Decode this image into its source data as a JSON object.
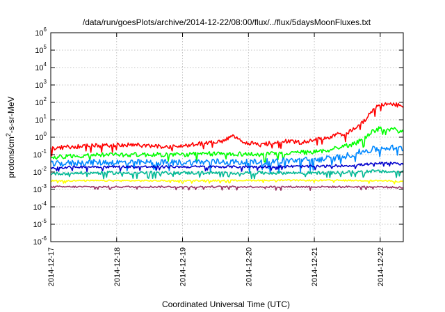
{
  "chart_data": {
    "type": "line",
    "title": "/data/run/goesPlots/archive/2014-12-22/08:00/flux/../flux/5daysMoonFluxes.txt",
    "xlabel": "Coordinated Universal Time (UTC)",
    "ylabel_base": "protons/cm",
    "ylabel_sup": "2",
    "ylabel_rest": "-s-sr-MeV",
    "x_ticks": [
      "2014-12-17",
      "2014-12-18",
      "2014-12-19",
      "2014-12-20",
      "2014-12-21",
      "2014-12-22"
    ],
    "xlim_days": [
      0,
      5.35
    ],
    "y_scale": "log",
    "ylim": [
      1e-06,
      1000000.0
    ],
    "y_ticks": [
      {
        "base": "10",
        "exp": "-6"
      },
      {
        "base": "10",
        "exp": "-5"
      },
      {
        "base": "10",
        "exp": "-4"
      },
      {
        "base": "10",
        "exp": "-3"
      },
      {
        "base": "10",
        "exp": "-2"
      },
      {
        "base": "10",
        "exp": "-1"
      },
      {
        "base": "10",
        "exp": "0"
      },
      {
        "base": "10",
        "exp": "1"
      },
      {
        "base": "10",
        "exp": "2"
      },
      {
        "base": "10",
        "exp": "3"
      },
      {
        "base": "10",
        "exp": "4"
      },
      {
        "base": "10",
        "exp": "5"
      },
      {
        "base": "10",
        "exp": "6"
      }
    ],
    "grid": true,
    "series": [
      {
        "color": "#ff0000",
        "noise": 0.12,
        "points": [
          [
            0,
            -0.65
          ],
          [
            0.3,
            -0.55
          ],
          [
            0.6,
            -0.5
          ],
          [
            1.0,
            -0.45
          ],
          [
            1.3,
            -0.45
          ],
          [
            1.7,
            -0.55
          ],
          [
            2.0,
            -0.5
          ],
          [
            2.3,
            -0.35
          ],
          [
            2.6,
            -0.25
          ],
          [
            2.75,
            0.05
          ],
          [
            2.9,
            -0.25
          ],
          [
            3.2,
            -0.45
          ],
          [
            3.5,
            -0.2
          ],
          [
            3.8,
            -0.3
          ],
          [
            4.0,
            -0.15
          ],
          [
            4.2,
            -0.05
          ],
          [
            4.35,
            0.2
          ],
          [
            4.45,
            0.1
          ],
          [
            4.6,
            0.5
          ],
          [
            4.75,
            0.9
          ],
          [
            4.85,
            1.4
          ],
          [
            4.95,
            1.75
          ],
          [
            5.1,
            1.9
          ],
          [
            5.25,
            1.85
          ],
          [
            5.35,
            1.8
          ]
        ]
      },
      {
        "color": "#00ff00",
        "noise": 0.13,
        "points": [
          [
            0,
            -1.15
          ],
          [
            0.5,
            -1.05
          ],
          [
            1.0,
            -1.0
          ],
          [
            1.5,
            -1.0
          ],
          [
            2.0,
            -1.0
          ],
          [
            2.5,
            -0.95
          ],
          [
            2.8,
            -0.95
          ],
          [
            3.2,
            -1.0
          ],
          [
            3.6,
            -0.9
          ],
          [
            4.0,
            -0.85
          ],
          [
            4.2,
            -0.75
          ],
          [
            4.4,
            -0.55
          ],
          [
            4.6,
            -0.4
          ],
          [
            4.75,
            -0.05
          ],
          [
            4.9,
            0.35
          ],
          [
            5.0,
            0.5
          ],
          [
            5.2,
            0.45
          ],
          [
            5.35,
            0.3
          ]
        ]
      },
      {
        "color": "#0088ff",
        "noise": 0.18,
        "points": [
          [
            0,
            -1.55
          ],
          [
            0.5,
            -1.45
          ],
          [
            1.0,
            -1.45
          ],
          [
            1.5,
            -1.45
          ],
          [
            2.0,
            -1.45
          ],
          [
            2.5,
            -1.4
          ],
          [
            3.0,
            -1.45
          ],
          [
            3.5,
            -1.35
          ],
          [
            4.0,
            -1.3
          ],
          [
            4.3,
            -1.2
          ],
          [
            4.5,
            -1.05
          ],
          [
            4.7,
            -0.85
          ],
          [
            4.9,
            -0.7
          ],
          [
            5.1,
            -0.6
          ],
          [
            5.35,
            -0.65
          ]
        ]
      },
      {
        "color": "#0000cc",
        "noise": 0.07,
        "points": [
          [
            0,
            -1.75
          ],
          [
            0.5,
            -1.7
          ],
          [
            1.0,
            -1.7
          ],
          [
            1.5,
            -1.7
          ],
          [
            2.0,
            -1.7
          ],
          [
            2.5,
            -1.7
          ],
          [
            3.0,
            -1.7
          ],
          [
            3.5,
            -1.68
          ],
          [
            4.0,
            -1.68
          ],
          [
            4.3,
            -1.65
          ],
          [
            4.6,
            -1.62
          ],
          [
            4.8,
            -1.55
          ],
          [
            5.0,
            -1.5
          ],
          [
            5.2,
            -1.5
          ],
          [
            5.35,
            -1.55
          ]
        ]
      },
      {
        "color": "#00b894",
        "noise": 0.09,
        "points": [
          [
            0,
            -2.1
          ],
          [
            0.5,
            -2.05
          ],
          [
            1.0,
            -2.05
          ],
          [
            1.5,
            -2.05
          ],
          [
            2.0,
            -2.05
          ],
          [
            2.5,
            -2.05
          ],
          [
            3.0,
            -2.05
          ],
          [
            3.5,
            -2.05
          ],
          [
            4.0,
            -2.05
          ],
          [
            4.3,
            -2.05
          ],
          [
            4.6,
            -2.0
          ],
          [
            4.85,
            -1.95
          ],
          [
            5.05,
            -1.98
          ],
          [
            5.35,
            -2.0
          ]
        ]
      },
      {
        "color": "#ffff00",
        "noise": 0.04,
        "points": [
          [
            0,
            -2.5
          ],
          [
            1.0,
            -2.5
          ],
          [
            2.0,
            -2.5
          ],
          [
            3.0,
            -2.48
          ],
          [
            4.0,
            -2.48
          ],
          [
            4.5,
            -2.48
          ],
          [
            5.0,
            -2.5
          ],
          [
            5.35,
            -2.55
          ]
        ]
      },
      {
        "color": "#993366",
        "noise": 0.05,
        "points": [
          [
            0,
            -2.85
          ],
          [
            1.0,
            -2.85
          ],
          [
            2.0,
            -2.85
          ],
          [
            3.0,
            -2.85
          ],
          [
            4.0,
            -2.85
          ],
          [
            5.0,
            -2.85
          ],
          [
            5.35,
            -2.9
          ]
        ]
      }
    ]
  }
}
